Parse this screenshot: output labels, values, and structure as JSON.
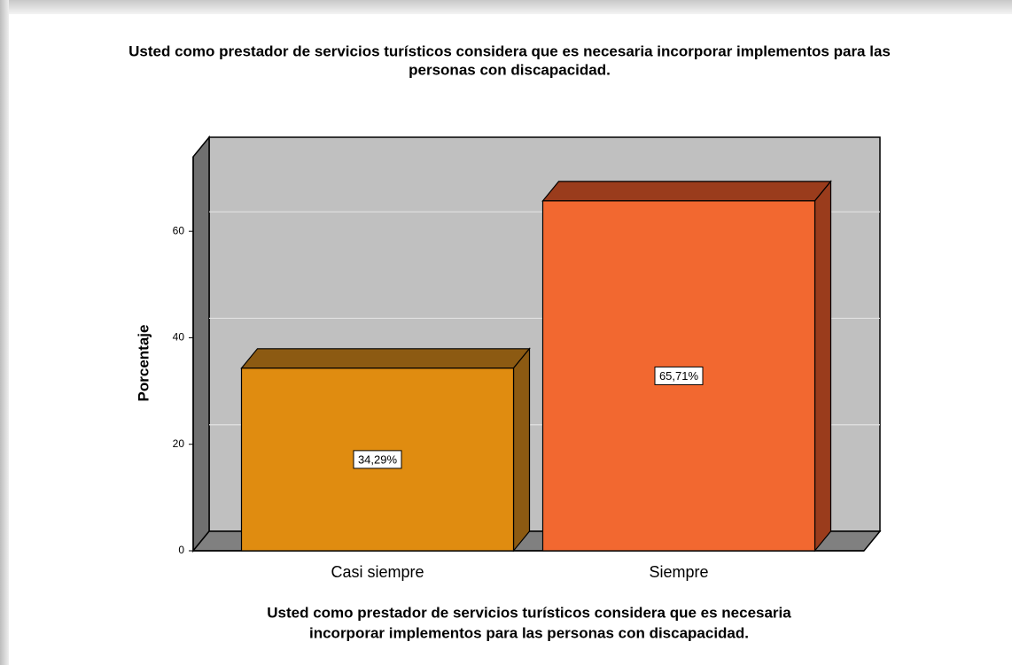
{
  "chart_data": {
    "type": "bar3d",
    "title": [
      "Usted como prestador de servicios turísticos considera que es necesaria incorporar implementos para las",
      "personas con discapacidad."
    ],
    "x_label": [
      "Usted como prestador de servicios turísticos considera que es necesaria",
      "incorporar implementos para las personas con discapacidad."
    ],
    "y_label": "Porcentaje",
    "categories": [
      "Casi siempre",
      "Siempre"
    ],
    "values": [
      34.29,
      65.71
    ],
    "value_labels": [
      "34,29%",
      "65,71%"
    ],
    "colors": [
      "#e08c10",
      "#f26830"
    ],
    "side_colors": [
      "#8c5a12",
      "#9a3c1c"
    ],
    "ylim": [
      0,
      74
    ],
    "yticks": [
      0,
      20,
      40,
      60
    ],
    "grid": true
  }
}
